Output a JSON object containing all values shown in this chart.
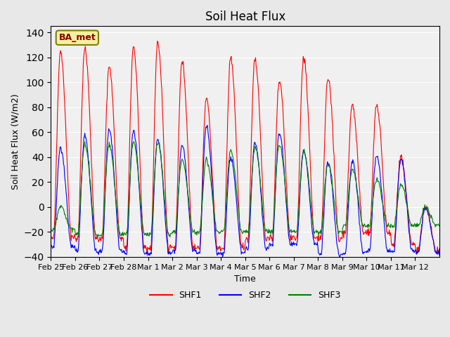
{
  "title": "Soil Heat Flux",
  "xlabel": "Time",
  "ylabel": "Soil Heat Flux (W/m2)",
  "ylim": [
    -40,
    145
  ],
  "yticks": [
    -40,
    -20,
    0,
    20,
    40,
    60,
    80,
    100,
    120,
    140
  ],
  "colors": {
    "SHF1": "red",
    "SHF2": "blue",
    "SHF3": "green"
  },
  "station_label": "BA_met",
  "background_color": "#e8e8e8",
  "plot_bg_color": "#f0f0f0",
  "n_days": 16,
  "xtick_labels": [
    "Feb 25",
    "Feb 26",
    "Feb 27",
    "Feb 28",
    "Mar 1",
    "Mar 2",
    "Mar 3",
    "Mar 4",
    "Mar 5",
    "Mar 6",
    "Mar 7",
    "Mar 8",
    "Mar 9",
    "Mar 10",
    "Mar 11",
    "Mar 12"
  ],
  "day_peaks_shf1": [
    124,
    127,
    113,
    128,
    133,
    118,
    87,
    120,
    118,
    101,
    120,
    104,
    82,
    82,
    40,
    0
  ],
  "day_peaks_shf2": [
    47,
    57,
    62,
    61,
    55,
    50,
    65,
    40,
    52,
    59,
    45,
    36,
    37,
    42,
    38,
    0
  ],
  "day_peaks_shf3": [
    0,
    50,
    50,
    52,
    52,
    38,
    38,
    45,
    48,
    50,
    45,
    35,
    30,
    22,
    18,
    0
  ],
  "night_val_shf1": [
    -25,
    -25,
    -25,
    -33,
    -33,
    -33,
    -33,
    -33,
    -25,
    -25,
    -25,
    -25,
    -20,
    -20,
    -30,
    -35
  ],
  "night_val_shf2": [
    -32,
    -35,
    -35,
    -37,
    -37,
    -35,
    -37,
    -37,
    -33,
    -30,
    -30,
    -38,
    -37,
    -35,
    -35,
    -37
  ],
  "night_val_shf3": [
    -18,
    -22,
    -22,
    -22,
    -22,
    -20,
    -20,
    -20,
    -20,
    -20,
    -20,
    -20,
    -15,
    -15,
    -15,
    -15
  ]
}
